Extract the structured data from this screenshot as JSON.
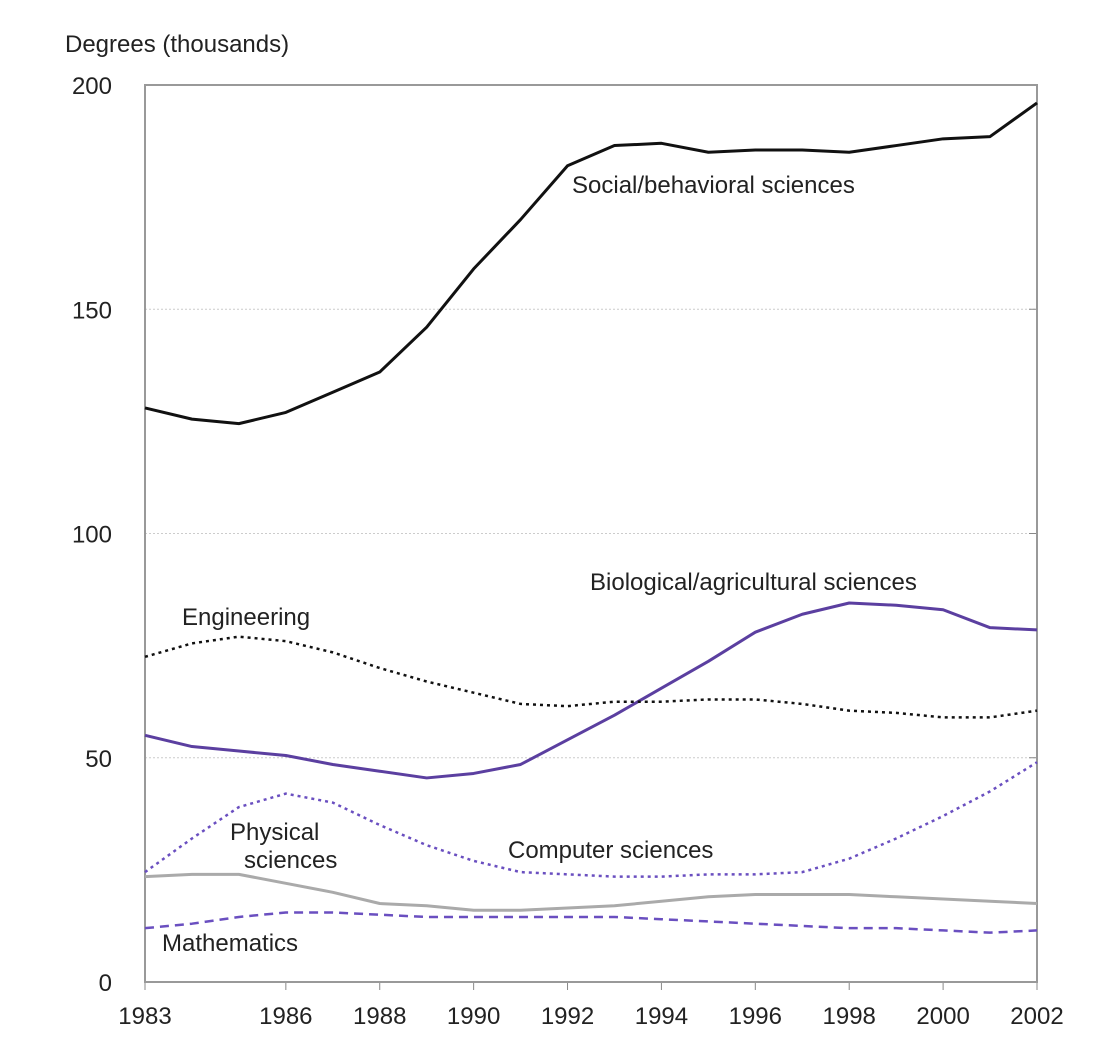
{
  "chart_data": {
    "type": "line",
    "ylabel": "Degrees (thousands)",
    "x": [
      1983,
      1984,
      1985,
      1986,
      1987,
      1988,
      1989,
      1990,
      1991,
      1992,
      1993,
      1994,
      1995,
      1996,
      1997,
      1998,
      1999,
      2000,
      2001,
      2002
    ],
    "xlim": [
      1983,
      2002
    ],
    "xticks": [
      1983,
      1986,
      1988,
      1990,
      1992,
      1994,
      1996,
      1998,
      2000,
      2002
    ],
    "ylim": [
      0,
      200
    ],
    "yticks": [
      0,
      50,
      100,
      150,
      200
    ],
    "grid": true,
    "series": [
      {
        "name": "Social/behavioral sciences",
        "color": "#111111",
        "style": "solid",
        "values": [
          128,
          125.5,
          124.5,
          127,
          131.5,
          136,
          146,
          159,
          170,
          182,
          186.5,
          187,
          185,
          185.5,
          185.5,
          185,
          186.5,
          188,
          188.5,
          196
        ]
      },
      {
        "name": "Biological/agricultural sciences",
        "color": "#5b3fa0",
        "style": "solid",
        "values": [
          55,
          52.5,
          51.5,
          50.5,
          48.5,
          47,
          45.5,
          46.5,
          48.5,
          54,
          59.5,
          65.5,
          71.5,
          78,
          82,
          84.5,
          84,
          83,
          79,
          78.5
        ]
      },
      {
        "name": "Engineering",
        "color": "#111111",
        "style": "dotted",
        "values": [
          72.5,
          75.5,
          77,
          76,
          73.5,
          70,
          67,
          64.5,
          62,
          61.5,
          62.5,
          62.5,
          63,
          63,
          62,
          60.5,
          60,
          59,
          59,
          60.5
        ]
      },
      {
        "name": "Computer sciences",
        "color": "#6a4fc0",
        "style": "dotted",
        "values": [
          24.5,
          32,
          39,
          42,
          40,
          35,
          30.5,
          27,
          24.5,
          24,
          23.5,
          23.5,
          24,
          24,
          24.5,
          27.5,
          32,
          37,
          42.5,
          49
        ]
      },
      {
        "name": "Physical sciences",
        "color": "#aaaaaa",
        "style": "solid",
        "values": [
          23.5,
          24,
          24,
          22,
          20,
          17.5,
          17,
          16,
          16,
          16.5,
          17,
          18,
          19,
          19.5,
          19.5,
          19.5,
          19,
          18.5,
          18,
          17.5
        ]
      },
      {
        "name": "Mathematics",
        "color": "#6a4fc0",
        "style": "dashed",
        "values": [
          12,
          13,
          14.5,
          15.5,
          15.5,
          15,
          14.5,
          14.5,
          14.5,
          14.5,
          14.5,
          14,
          13.5,
          13,
          12.5,
          12,
          12,
          11.5,
          11,
          11.5
        ]
      }
    ]
  }
}
